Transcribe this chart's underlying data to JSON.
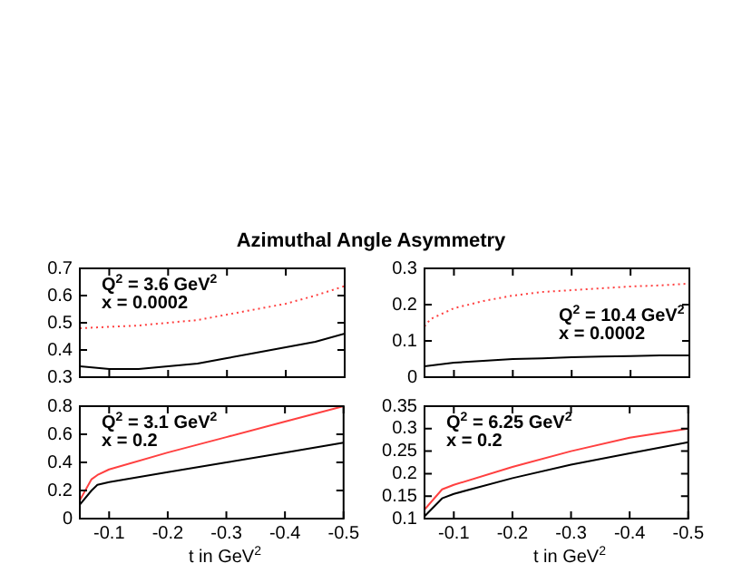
{
  "chart_data": [
    {
      "type": "line",
      "title": "Azimuthal Angle Asymmetry",
      "annotations": [
        "Q$^{2}$ = 3.6 GeV$^{2}$",
        "x = 0.0002"
      ],
      "x": [
        -0.05,
        -0.1,
        -0.15,
        -0.2,
        -0.25,
        -0.3,
        -0.35,
        -0.4,
        -0.45,
        -0.5
      ],
      "xlim": [
        -0.05,
        -0.5
      ],
      "xticks": [
        -0.1,
        -0.2,
        -0.3,
        -0.4,
        -0.5
      ],
      "ylim": [
        0.3,
        0.7
      ],
      "yticks": [
        0.3,
        0.4,
        0.5,
        0.6,
        0.7
      ],
      "tick_labels": "y",
      "marker": "none",
      "series": [
        {
          "color": "#000000",
          "line_style": "solid",
          "values": [
            0.34,
            0.33,
            0.33,
            0.34,
            0.35,
            0.37,
            0.39,
            0.41,
            0.43,
            0.46
          ]
        },
        {
          "color": "#ff4040",
          "line_style": "dotted",
          "values": [
            0.48,
            0.485,
            0.49,
            0.5,
            0.51,
            0.53,
            0.55,
            0.57,
            0.6,
            0.635
          ]
        }
      ]
    },
    {
      "type": "line",
      "annotations": [
        "Q$^{2}$ = 10.4 GeV$^{2}$",
        "x = 0.0002"
      ],
      "xlim": [
        -0.05,
        -0.5
      ],
      "xticks": [
        -0.1,
        -0.2,
        -0.3,
        -0.4,
        -0.5
      ],
      "ylim": [
        0,
        0.3
      ],
      "yticks": [
        0,
        0.1,
        0.2,
        0.3
      ],
      "tick_labels": "y",
      "marker": "none",
      "series": [
        {
          "color": "#000000",
          "line_style": "solid",
          "x": [
            -0.05,
            -0.1,
            -0.15,
            -0.2,
            -0.25,
            -0.3,
            -0.35,
            -0.4,
            -0.45,
            -0.5
          ],
          "values": [
            0.03,
            0.04,
            0.045,
            0.05,
            0.052,
            0.055,
            0.057,
            0.058,
            0.06,
            0.06
          ]
        },
        {
          "color": "#ff4040",
          "line_style": "dotted",
          "x": [
            -0.05,
            -0.06,
            -0.1,
            -0.15,
            -0.2,
            -0.25,
            -0.3,
            -0.35,
            -0.4,
            -0.45,
            -0.5
          ],
          "values": [
            0.14,
            0.16,
            0.19,
            0.21,
            0.225,
            0.235,
            0.24,
            0.245,
            0.25,
            0.253,
            0.258
          ]
        }
      ]
    },
    {
      "type": "line",
      "xlabel": "t in GeV$^{2}$",
      "annotations": [
        "Q$^{2}$ = 3.1 GeV$^{2}$",
        "x = 0.2"
      ],
      "x": [
        -0.05,
        -0.07,
        -0.08,
        -0.1,
        -0.2,
        -0.3,
        -0.4,
        -0.5
      ],
      "xlim": [
        -0.05,
        -0.5
      ],
      "xticks": [
        -0.1,
        -0.2,
        -0.3,
        -0.4,
        -0.5
      ],
      "ylim": [
        0,
        0.8
      ],
      "yticks": [
        0,
        0.2,
        0.4,
        0.6,
        0.8
      ],
      "marker": "none",
      "series": [
        {
          "color": "#000000",
          "line_style": "solid",
          "values": [
            0.1,
            0.2,
            0.24,
            0.26,
            0.33,
            0.4,
            0.47,
            0.54
          ]
        },
        {
          "color": "#ff4040",
          "line_style": "solid",
          "values": [
            0.13,
            0.28,
            0.31,
            0.35,
            0.47,
            0.58,
            0.69,
            0.8
          ]
        }
      ]
    },
    {
      "type": "line",
      "xlabel": "t in GeV$^{2}$",
      "annotations": [
        "Q$^{2}$ = 6.25 GeV$^{2}$",
        "x = 0.2"
      ],
      "x": [
        -0.05,
        -0.08,
        -0.1,
        -0.2,
        -0.3,
        -0.4,
        -0.5
      ],
      "xlim": [
        -0.05,
        -0.5
      ],
      "xticks": [
        -0.1,
        -0.2,
        -0.3,
        -0.4,
        -0.5
      ],
      "ylim": [
        0.1,
        0.35
      ],
      "yticks": [
        0.1,
        0.15,
        0.2,
        0.25,
        0.3,
        0.35
      ],
      "marker": "none",
      "series": [
        {
          "color": "#000000",
          "line_style": "solid",
          "values": [
            0.105,
            0.145,
            0.155,
            0.19,
            0.22,
            0.245,
            0.27
          ]
        },
        {
          "color": "#ff4040",
          "line_style": "solid",
          "values": [
            0.12,
            0.165,
            0.175,
            0.215,
            0.25,
            0.28,
            0.3
          ]
        }
      ]
    }
  ]
}
